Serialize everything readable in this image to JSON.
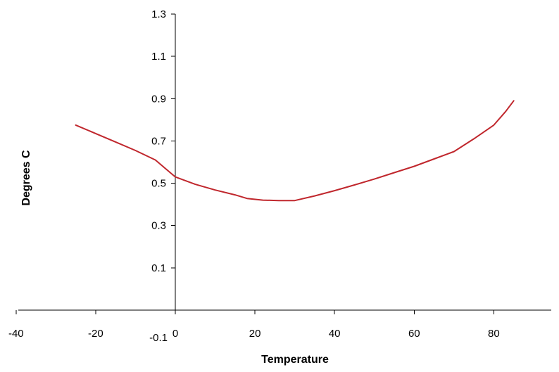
{
  "chart_data": {
    "type": "line",
    "title": "",
    "xlabel": "Temperature",
    "ylabel": "Degrees C",
    "xlim": [
      -40,
      94
    ],
    "ylim": [
      -0.1,
      1.3
    ],
    "x_ticks": [
      -40,
      -20,
      0,
      20,
      40,
      60,
      80
    ],
    "x_tick_labels": [
      "-40",
      "-20",
      "0",
      "20",
      "40",
      "60",
      "80"
    ],
    "y_ticks": [
      0.1,
      0.3,
      0.5,
      0.7,
      0.9,
      1.1,
      1.3
    ],
    "y_tick_labels": [
      "0.1",
      "0.3",
      "0.5",
      "0.7",
      "0.9",
      "1.1",
      "1.3"
    ],
    "y_bottom_label": "-0.1",
    "grid": false,
    "legend": "none",
    "series": [
      {
        "color": "#c0272d",
        "x": [
          -25,
          -20,
          -15,
          -10,
          -5,
          0,
          5,
          10,
          15,
          18,
          22,
          26,
          30,
          35,
          40,
          45,
          50,
          55,
          60,
          65,
          70,
          75,
          80,
          83,
          85
        ],
        "y": [
          0.775,
          0.735,
          0.695,
          0.655,
          0.61,
          0.53,
          0.495,
          0.468,
          0.445,
          0.428,
          0.42,
          0.418,
          0.418,
          0.44,
          0.465,
          0.492,
          0.52,
          0.55,
          0.58,
          0.615,
          0.65,
          0.71,
          0.775,
          0.84,
          0.89
        ]
      }
    ]
  }
}
